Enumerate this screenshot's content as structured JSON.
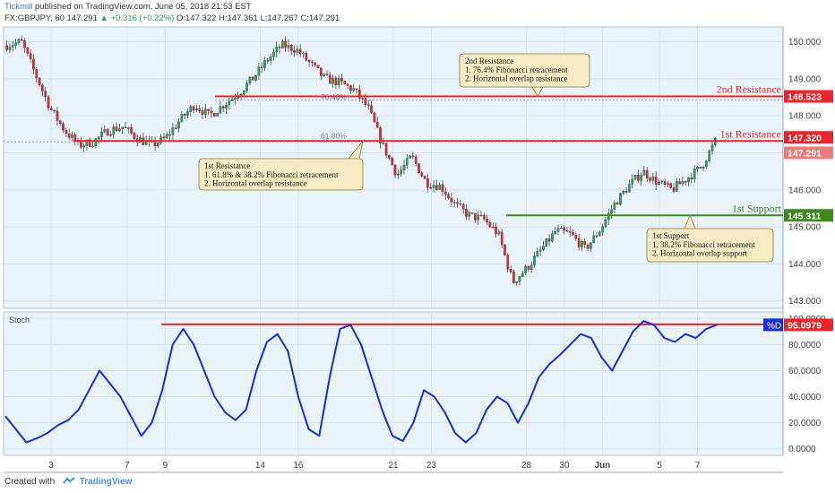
{
  "header": {
    "publisher": "Tickmill",
    "published_text": "published on TradingView.com, June 05, 2018 21:53 EST",
    "symbol": "FX:GBPJPY, 60",
    "last": "147.291",
    "change": "+0.316 (+0.22%)",
    "ohlc": "O:147.322 H:147.361 L:147.267 C:147.291"
  },
  "footer": {
    "created_with": "Created with",
    "brand": "TradingView"
  },
  "chart_data": [
    {
      "type": "candlestick",
      "ylim": [
        142.8,
        150.4
      ],
      "y_ticks": [
        143.0,
        144.0,
        145.0,
        146.0,
        147.0,
        148.0,
        149.0,
        150.0
      ],
      "y_tick_labels": [
        "143.000",
        "144.000",
        "145.000",
        "146.000",
        "147.000",
        "148.000",
        "149.000",
        "150.000"
      ],
      "x_tick_labels": [
        "3",
        "7",
        "9",
        "14",
        "16",
        "21",
        "23",
        "28",
        "30",
        "Jun",
        "5",
        "7"
      ],
      "x_tick_index": [
        2,
        6,
        8,
        13,
        15,
        20,
        22,
        27,
        29,
        31,
        34,
        36
      ],
      "date_range": [
        "2018-05-01",
        "2018-06-05"
      ],
      "price_path": [
        149.9,
        150.0,
        149.1,
        148.2,
        147.6,
        147.2,
        147.3,
        147.6,
        147.7,
        147.4,
        147.2,
        147.4,
        147.9,
        148.3,
        148.0,
        148.3,
        148.6,
        149.0,
        149.5,
        149.9,
        149.8,
        149.4,
        149.0,
        148.9,
        148.7,
        148.2,
        147.2,
        146.4,
        146.9,
        146.2,
        146.1,
        145.6,
        145.3,
        145.2,
        144.8,
        143.5,
        143.9,
        144.4,
        144.9,
        144.8,
        144.4,
        144.9,
        145.6,
        146.1,
        146.5,
        146.2,
        146.0,
        146.3,
        146.6,
        147.3
      ],
      "levels": [
        {
          "name": "2nd Resistance",
          "value": 148.523,
          "label": "148.523",
          "fib_label": "76.40%",
          "color": "#e8262b"
        },
        {
          "name": "1st Resistance",
          "value": 147.32,
          "label": "147.320",
          "fib_label": "61.80%",
          "color": "#e8262b"
        },
        {
          "name": "1st Support",
          "value": 145.311,
          "label": "145.311",
          "color": "#3a8a1c"
        }
      ],
      "last_price": {
        "value": 147.291,
        "label": "147.291"
      },
      "annotations": [
        {
          "title": "2nd Resistance",
          "lines": [
            "1. 76.4% Fibonacci retracement",
            "2. Horizontal overlap resistance"
          ]
        },
        {
          "title": "1st Resistance",
          "lines": [
            "1. 61.8% & 38.2% Fibonacci retracement",
            "2. Horizontal overlap resistance"
          ]
        },
        {
          "title": "1st Support",
          "lines": [
            "1. 38.2% Fibonacci retracement",
            "2. Horizontal overlap support"
          ]
        }
      ],
      "up_color": "#26a35a",
      "down_color": "#e8262b"
    },
    {
      "type": "line",
      "title": "Stoch",
      "ylim": [
        -5,
        105
      ],
      "y_ticks": [
        0,
        20,
        40,
        60,
        80,
        100
      ],
      "y_tick_labels": [
        "0.0000",
        "20.0000",
        "40.0000",
        "60.0000",
        "80.0000",
        "100.0000"
      ],
      "series": [
        {
          "name": "%D",
          "color": "#1a2bd9",
          "values": [
            25,
            15,
            5,
            8,
            12,
            18,
            22,
            30,
            45,
            60,
            50,
            40,
            25,
            10,
            20,
            45,
            80,
            92,
            80,
            60,
            40,
            28,
            22,
            30,
            60,
            82,
            88,
            75,
            40,
            15,
            10,
            55,
            92,
            95,
            80,
            55,
            30,
            10,
            6,
            20,
            45,
            40,
            28,
            12,
            5,
            12,
            30,
            40,
            35,
            20,
            35,
            55,
            65,
            72,
            80,
            88,
            85,
            70,
            60,
            75,
            90,
            98,
            95,
            85,
            82,
            88,
            85,
            92,
            95
          ]
        }
      ],
      "last_value": {
        "value": 95.0979,
        "label": "95.0979",
        "tag": "%D"
      },
      "reference_line": {
        "value": 95.5,
        "color": "#e8262b"
      }
    }
  ]
}
